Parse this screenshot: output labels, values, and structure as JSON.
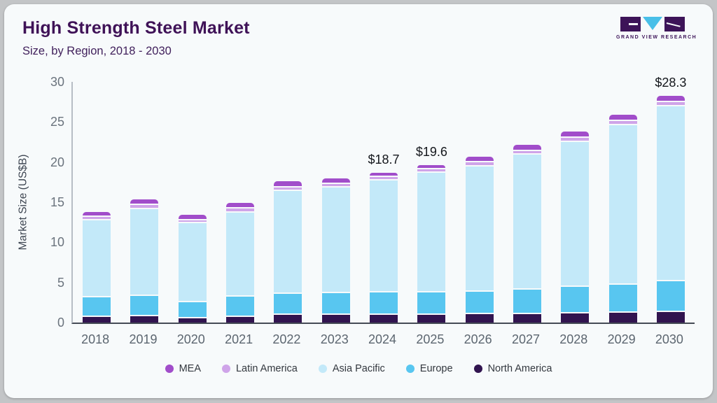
{
  "header": {
    "title": "High Strength Steel Market",
    "subtitle": "Size, by Region, 2018 - 2030",
    "logo_text": "GRAND VIEW RESEARCH"
  },
  "colors": {
    "card_background": "#f7fafb",
    "frame_background": "#c3c5c7",
    "title_text": "#3f1257",
    "axis_text": "#6a737d"
  },
  "chart_data": {
    "type": "bar",
    "stacked": true,
    "title": "High Strength Steel Market Size, by Region, 2018 - 2030",
    "xlabel": "",
    "ylabel": "Market Size (US$B)",
    "ylim": [
      0,
      30
    ],
    "yticks": [
      0,
      5,
      10,
      15,
      20,
      25,
      30
    ],
    "grid": false,
    "legend_position": "bottom",
    "categories": [
      2018,
      2019,
      2020,
      2021,
      2022,
      2023,
      2024,
      2025,
      2026,
      2027,
      2028,
      2029,
      2030
    ],
    "series": [
      {
        "name": "North America",
        "color": "#31144f",
        "values": [
          0.85,
          1.0,
          0.7,
          0.9,
          1.15,
          1.15,
          1.1,
          1.15,
          1.25,
          1.25,
          1.3,
          1.4,
          1.45
        ]
      },
      {
        "name": "Europe",
        "color": "#58c6f0",
        "values": [
          2.5,
          2.45,
          2.0,
          2.5,
          2.6,
          2.65,
          2.8,
          2.8,
          2.8,
          3.0,
          3.3,
          3.5,
          3.85
        ]
      },
      {
        "name": "Asia Pacific",
        "color": "#c3e9f9",
        "values": [
          9.6,
          10.85,
          9.85,
          10.5,
          12.85,
          13.2,
          14.0,
          14.85,
          15.6,
          16.85,
          18.1,
          19.9,
          21.85
        ]
      },
      {
        "name": "Latin America",
        "color": "#cfa4e9",
        "values": [
          0.4,
          0.5,
          0.4,
          0.45,
          0.45,
          0.45,
          0.4,
          0.45,
          0.5,
          0.45,
          0.5,
          0.5,
          0.5
        ]
      },
      {
        "name": "MEA",
        "color": "#a14dca",
        "values": [
          0.45,
          0.55,
          0.5,
          0.55,
          0.55,
          0.55,
          0.4,
          0.35,
          0.55,
          0.6,
          0.6,
          0.6,
          0.65
        ]
      }
    ],
    "totals_shown": [
      {
        "year": 2024,
        "label": "$18.7"
      },
      {
        "year": 2025,
        "label": "$19.6"
      },
      {
        "year": 2030,
        "label": "$28.3"
      }
    ],
    "legend": [
      "MEA",
      "Latin America",
      "Asia Pacific",
      "Europe",
      "North America"
    ]
  }
}
